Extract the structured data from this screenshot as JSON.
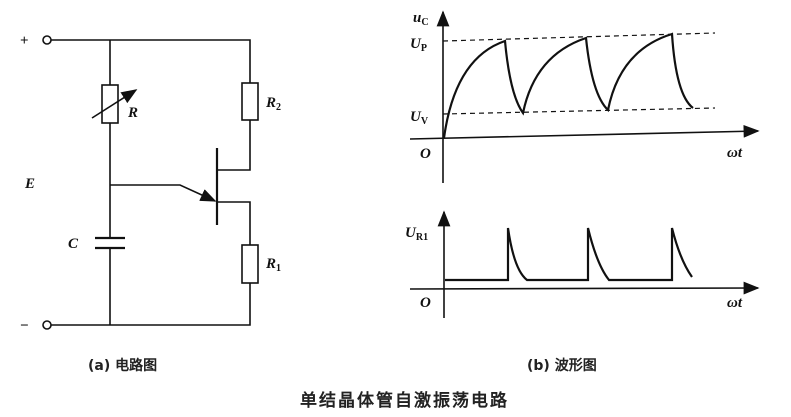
{
  "circuit": {
    "plus": "+",
    "minus": "−",
    "source": "E",
    "capacitor": "C",
    "variable_resistor": "R",
    "r2": {
      "main": "R",
      "sub": "2"
    },
    "r1": {
      "main": "R",
      "sub": "1"
    },
    "caption": "(a) 电路图"
  },
  "waveform": {
    "top_y_axis": {
      "main": "u",
      "sub": "C"
    },
    "up_label": {
      "main": "U",
      "sub": "P"
    },
    "uv_label": {
      "main": "U",
      "sub": "V"
    },
    "origin": "O",
    "x_axis": "ωt",
    "bottom_y_axis": {
      "main": "U",
      "sub": "R1"
    },
    "caption": "(b) 波形图"
  },
  "title": "单结晶体管自激振荡电路"
}
